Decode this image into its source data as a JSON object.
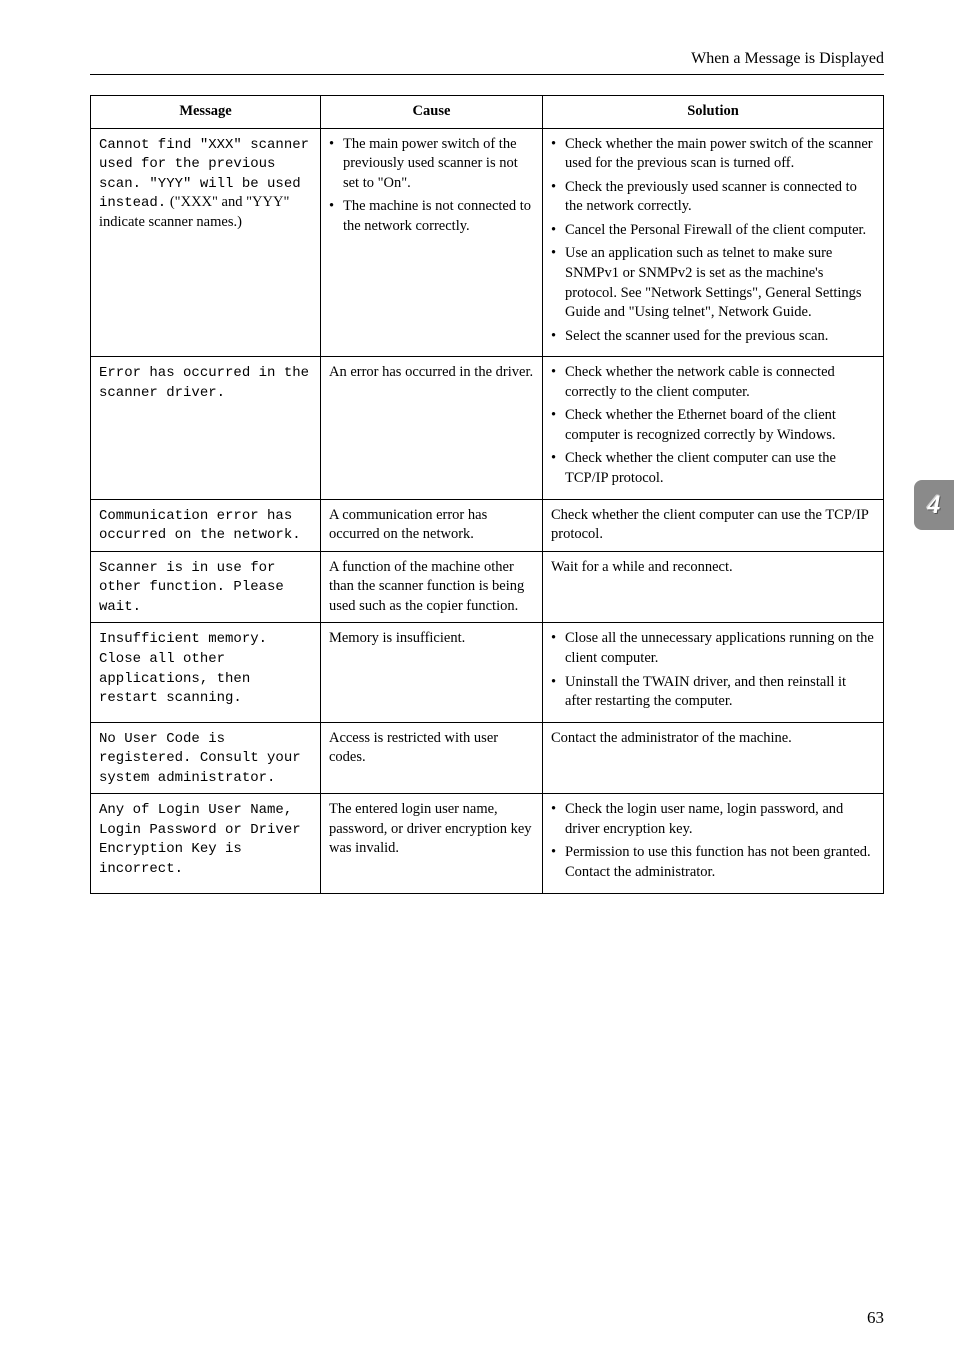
{
  "header": {
    "title": "When a Message is Displayed"
  },
  "sideTab": {
    "number": "4"
  },
  "pageNumber": "63",
  "table": {
    "headers": {
      "message": "Message",
      "cause": "Cause",
      "solution": "Solution"
    },
    "rows": [
      {
        "message_mono": "Cannot find \"XXX\" scanner used for the previous scan. \"YYY\" will be used instead.",
        "message_tail": "(\"XXX\" and \"YYY\" indicate scanner names.)",
        "cause_bullets": [
          "The main power switch of the previously used scanner is not set to \"On\".",
          "The machine is not connected to the network correctly."
        ],
        "solution_bullets": [
          "Check whether the main power switch of the scanner used for the previous scan is turned off.",
          "Check the previously used scanner is connected to the network correctly.",
          "Cancel the Personal Firewall of the client computer.",
          "Use an application such as telnet to make sure SNMPv1 or SNMPv2 is set as the machine's protocol. See \"Network Settings\", General Settings Guide and \"Using telnet\", Network Guide.",
          "Select the scanner used for the previous scan."
        ]
      },
      {
        "message_mono": "Error has occurred in the scanner driver.",
        "cause_text": "An error has occurred in the driver.",
        "solution_bullets": [
          "Check whether the network cable is connected correctly to the client computer.",
          "Check whether the Ethernet board of the client computer is recognized correctly by Windows.",
          "Check whether the client computer can use the TCP/IP protocol."
        ]
      },
      {
        "message_mono": "Communication error has occurred on the network.",
        "cause_text": "A communication error has occurred on the network.",
        "solution_text": "Check whether the client computer can use the TCP/IP protocol."
      },
      {
        "message_mono": "Scanner is in use for other function. Please wait.",
        "cause_text": "A function of the machine other than the scanner function is being used such as the copier function.",
        "solution_text": "Wait for a while and reconnect."
      },
      {
        "message_mono": "Insufficient memory. Close all other applications, then restart scanning.",
        "cause_text": "Memory is insufficient.",
        "solution_bullets": [
          "Close all the unnecessary applications running on the client computer.",
          "Uninstall the TWAIN driver, and then reinstall it after restarting the computer."
        ]
      },
      {
        "message_mono": "No User Code is registered. Consult your system administrator.",
        "cause_text": "Access is restricted with user codes.",
        "solution_text": "Contact the administrator of the machine."
      },
      {
        "message_mono": "Any of Login User Name, Login Password or Driver Encryption Key is incorrect.",
        "cause_text": "The entered login user name, password, or driver encryption key was invalid.",
        "solution_bullets": [
          "Check the login user name, login password, and driver encryption key.",
          "Permission to use this function has not been granted. Contact the administrator."
        ]
      }
    ]
  }
}
